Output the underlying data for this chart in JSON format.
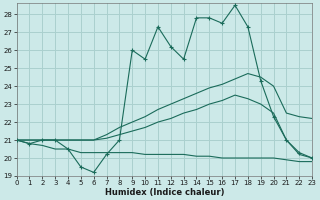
{
  "xlabel": "Humidex (Indice chaleur)",
  "bg_color": "#cce9e8",
  "grid_color": "#aad0ce",
  "line_color": "#1a6b5a",
  "x_ticks": [
    0,
    1,
    2,
    3,
    4,
    5,
    6,
    7,
    8,
    9,
    10,
    11,
    12,
    13,
    14,
    15,
    16,
    17,
    18,
    19,
    20,
    21,
    22,
    23
  ],
  "y_ticks": [
    19,
    20,
    21,
    22,
    23,
    24,
    25,
    26,
    27,
    28
  ],
  "xlim": [
    0,
    23
  ],
  "ylim": [
    19,
    28.6
  ],
  "main_line_x": [
    0,
    1,
    2,
    3,
    4,
    5,
    6,
    7,
    8,
    9,
    10,
    11,
    12,
    13,
    14,
    15,
    16,
    17,
    18,
    19,
    20,
    21,
    22,
    23
  ],
  "main_line_y": [
    21.0,
    20.8,
    21.0,
    21.0,
    20.5,
    19.5,
    19.2,
    20.2,
    21.0,
    26.0,
    25.5,
    27.3,
    26.2,
    25.5,
    27.8,
    27.8,
    27.5,
    28.5,
    27.3,
    24.3,
    22.3,
    21.0,
    20.3,
    20.0
  ],
  "line2_x": [
    0,
    1,
    2,
    3,
    4,
    5,
    6,
    7,
    8,
    9,
    10,
    11,
    12,
    13,
    14,
    15,
    16,
    17,
    18,
    19,
    20,
    21,
    22,
    23
  ],
  "line2_y": [
    21.0,
    21.0,
    21.0,
    21.0,
    21.0,
    21.0,
    21.0,
    21.3,
    21.7,
    22.0,
    22.3,
    22.7,
    23.0,
    23.3,
    23.6,
    23.9,
    24.1,
    24.4,
    24.7,
    24.5,
    24.0,
    22.5,
    22.3,
    22.2
  ],
  "line3_x": [
    0,
    1,
    2,
    3,
    4,
    5,
    6,
    7,
    8,
    9,
    10,
    11,
    12,
    13,
    14,
    15,
    16,
    17,
    18,
    19,
    20,
    21,
    22,
    23
  ],
  "line3_y": [
    21.0,
    21.0,
    21.0,
    21.0,
    21.0,
    21.0,
    21.0,
    21.1,
    21.3,
    21.5,
    21.7,
    22.0,
    22.2,
    22.5,
    22.7,
    23.0,
    23.2,
    23.5,
    23.3,
    23.0,
    22.5,
    21.0,
    20.2,
    20.0
  ],
  "line4_x": [
    0,
    1,
    2,
    3,
    4,
    5,
    6,
    7,
    8,
    9,
    10,
    11,
    12,
    13,
    14,
    15,
    16,
    17,
    18,
    19,
    20,
    21,
    22,
    23
  ],
  "line4_y": [
    21.0,
    20.8,
    20.7,
    20.5,
    20.5,
    20.3,
    20.3,
    20.3,
    20.3,
    20.3,
    20.2,
    20.2,
    20.2,
    20.2,
    20.1,
    20.1,
    20.0,
    20.0,
    20.0,
    20.0,
    20.0,
    19.9,
    19.8,
    19.8
  ]
}
